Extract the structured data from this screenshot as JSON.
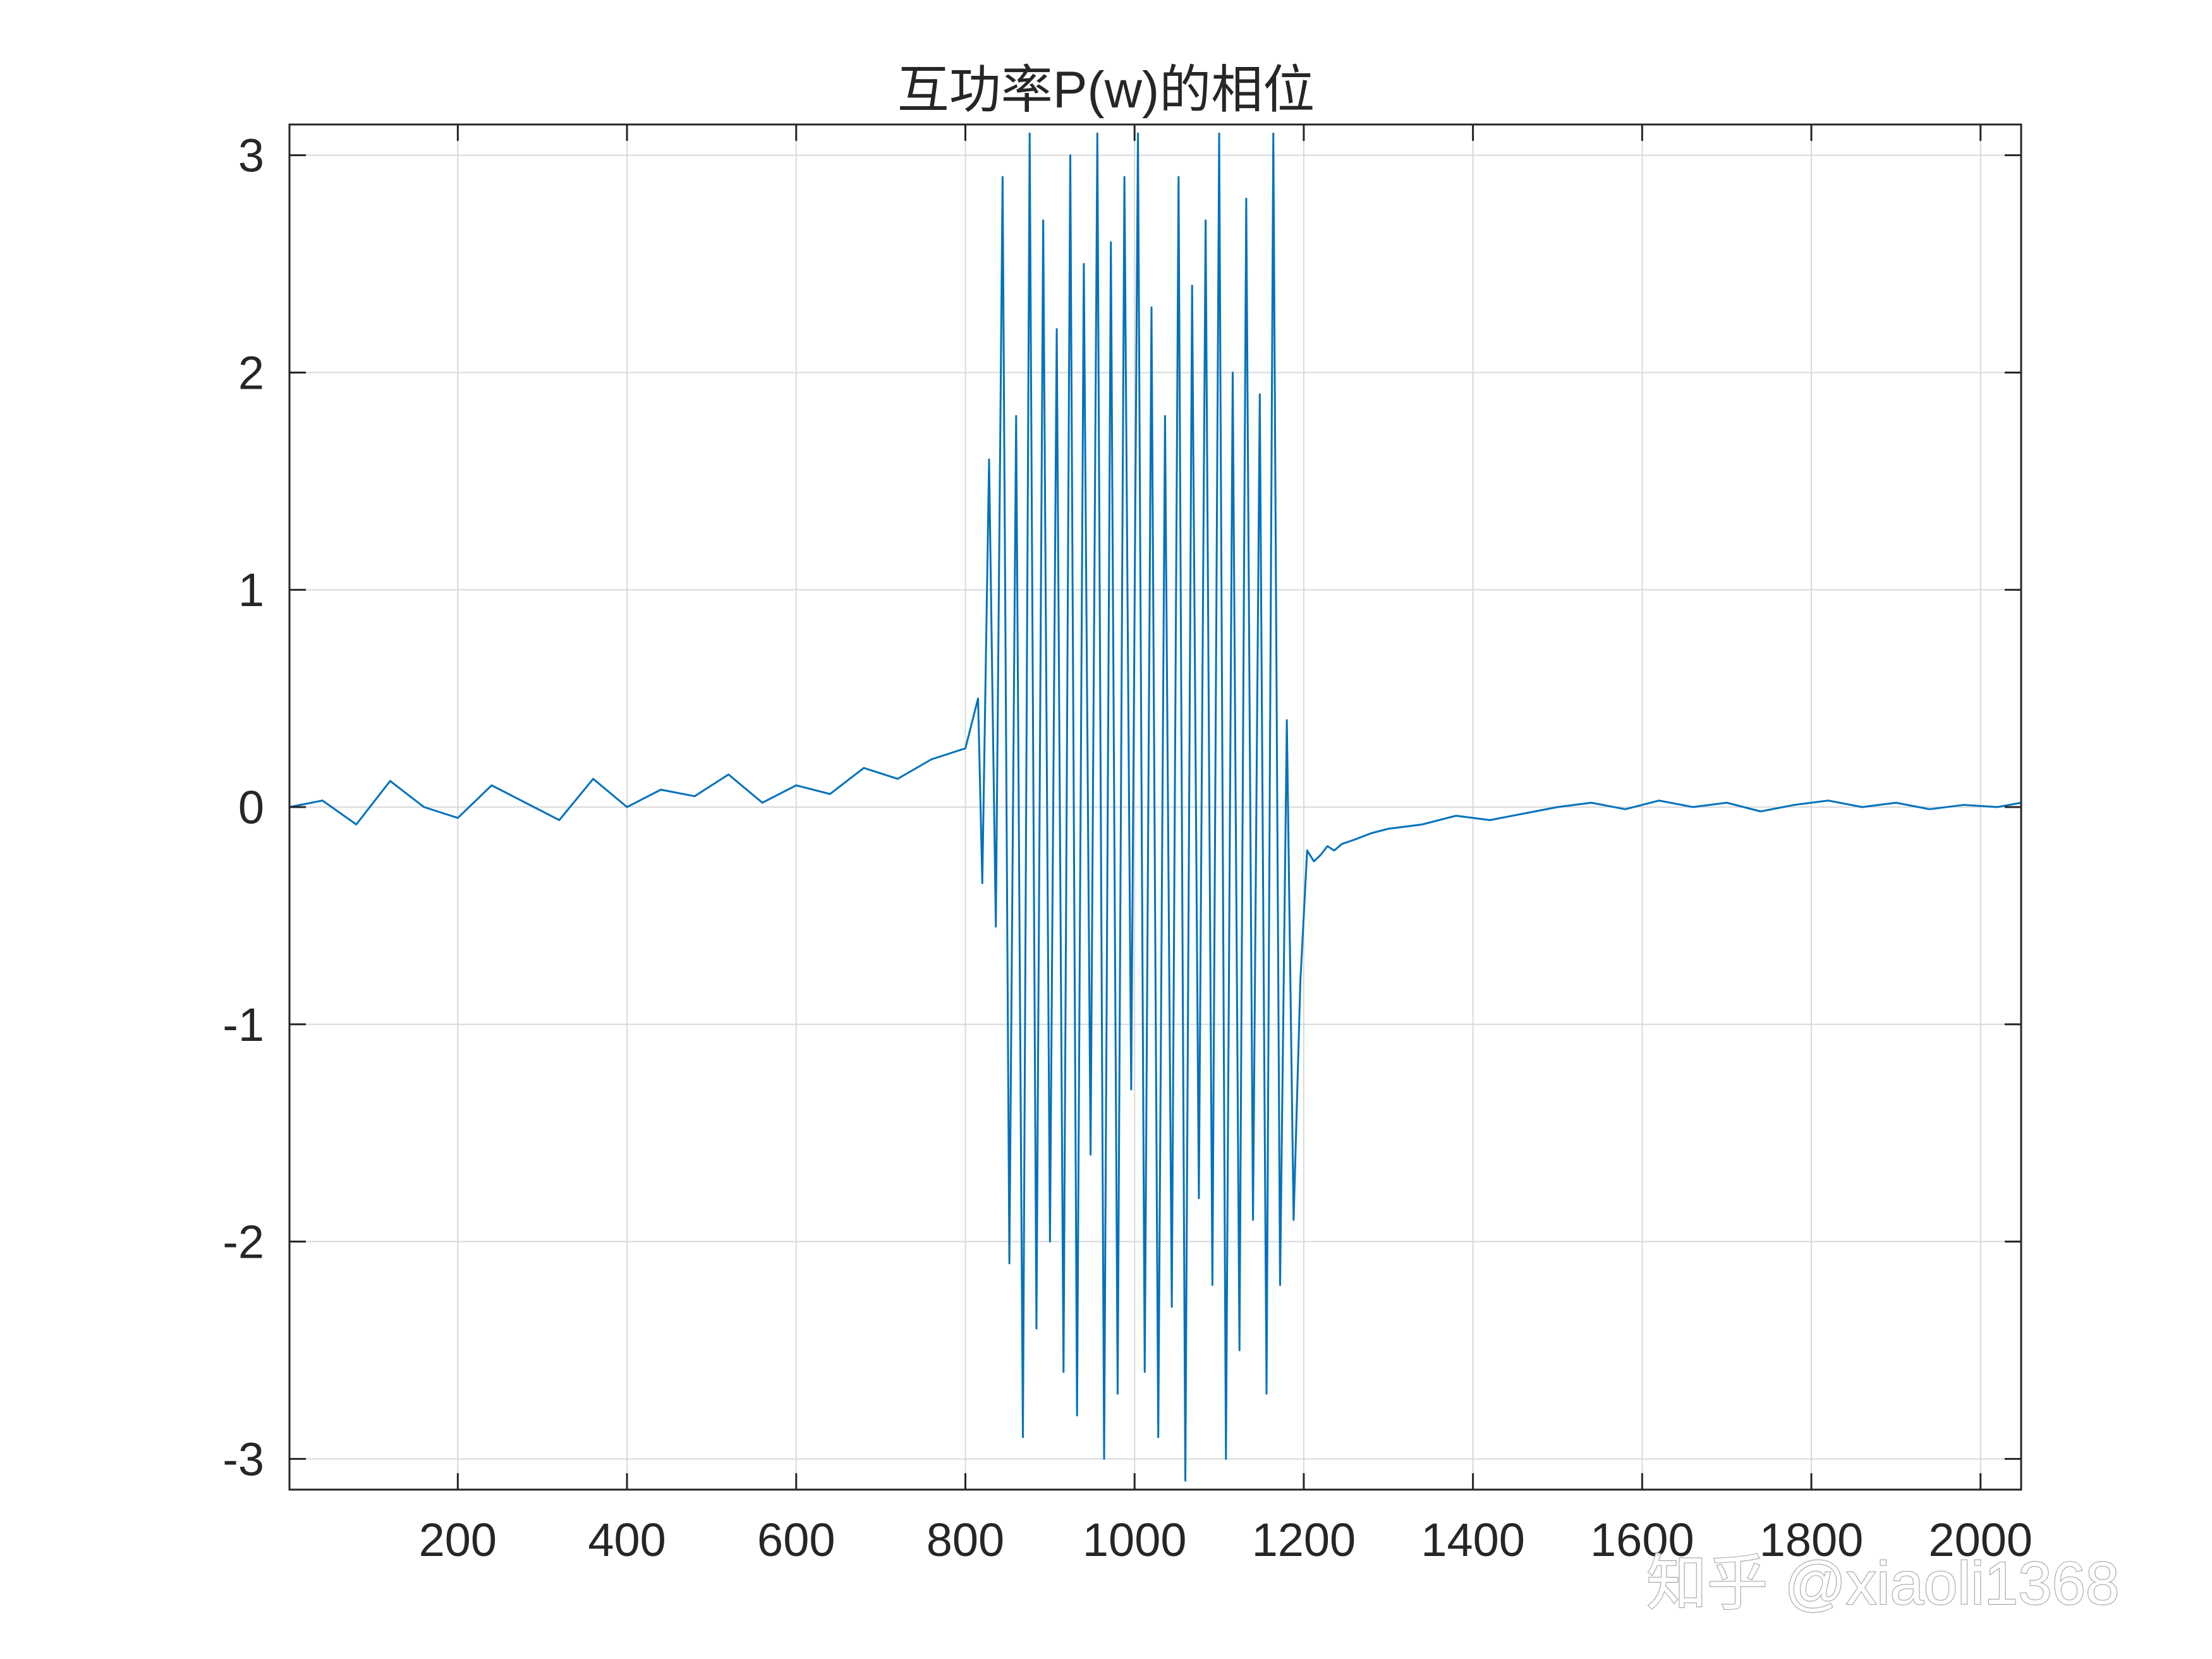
{
  "chart_data": {
    "type": "line",
    "title": "互功率P(w)的相位",
    "xlabel": "",
    "ylabel": "",
    "xlim": [
      1,
      2048
    ],
    "ylim": [
      -3.1416,
      3.1416
    ],
    "x_ticks": [
      "200",
      "400",
      "600",
      "800",
      "1000",
      "1200",
      "1400",
      "1600",
      "1800",
      "2000"
    ],
    "y_ticks": [
      "-3",
      "-2",
      "-1",
      "0",
      "1",
      "2",
      "3"
    ],
    "grid": true,
    "colors": {
      "series": "#0072BD",
      "axes": "#262626",
      "grid": "#d9d9d9"
    },
    "series": [
      {
        "x": [
          1,
          40,
          80,
          120,
          160,
          200,
          240,
          280,
          320,
          360,
          400,
          440,
          480,
          520,
          560,
          600,
          640,
          680,
          720,
          760,
          800,
          815,
          820,
          828,
          836,
          844,
          852,
          860,
          868,
          876,
          884,
          892,
          900,
          908,
          916,
          924,
          932,
          940,
          948,
          956,
          964,
          972,
          980,
          988,
          996,
          1004,
          1012,
          1020,
          1028,
          1036,
          1044,
          1052,
          1060,
          1068,
          1076,
          1084,
          1092,
          1100,
          1108,
          1116,
          1124,
          1132,
          1140,
          1148,
          1156,
          1164,
          1172,
          1180,
          1188,
          1196,
          1204,
          1212,
          1220,
          1228,
          1236,
          1245,
          1260,
          1280,
          1300,
          1340,
          1380,
          1420,
          1460,
          1500,
          1540,
          1580,
          1620,
          1660,
          1700,
          1740,
          1780,
          1820,
          1860,
          1900,
          1940,
          1980,
          2020,
          2048
        ],
        "y": [
          0.0,
          0.03,
          -0.08,
          0.12,
          0.0,
          -0.05,
          0.1,
          0.02,
          -0.06,
          0.13,
          0.0,
          0.08,
          0.05,
          0.15,
          0.02,
          0.1,
          0.06,
          0.18,
          0.13,
          0.22,
          0.27,
          0.5,
          -0.35,
          1.6,
          -0.55,
          2.9,
          -2.1,
          1.8,
          -2.9,
          3.1,
          -2.4,
          2.7,
          -2.0,
          2.2,
          -2.6,
          3.0,
          -2.8,
          2.5,
          -1.6,
          3.1,
          -3.0,
          2.6,
          -2.7,
          2.9,
          -1.3,
          3.1,
          -2.6,
          2.3,
          -2.9,
          1.8,
          -2.3,
          2.9,
          -3.1,
          2.4,
          -1.8,
          2.7,
          -2.2,
          3.1,
          -3.0,
          2.0,
          -2.5,
          2.8,
          -1.9,
          1.9,
          -2.7,
          3.1,
          -2.2,
          0.4,
          -1.9,
          -0.8,
          -0.2,
          -0.25,
          -0.22,
          -0.18,
          -0.2,
          -0.17,
          -0.15,
          -0.12,
          -0.1,
          -0.08,
          -0.04,
          -0.06,
          -0.03,
          0.0,
          0.02,
          -0.01,
          0.03,
          0.0,
          0.02,
          -0.02,
          0.01,
          0.03,
          0.0,
          0.02,
          -0.01,
          0.01,
          0.0,
          0.02
        ]
      }
    ]
  },
  "watermark": {
    "text": "知乎 @xiaoli1368"
  }
}
